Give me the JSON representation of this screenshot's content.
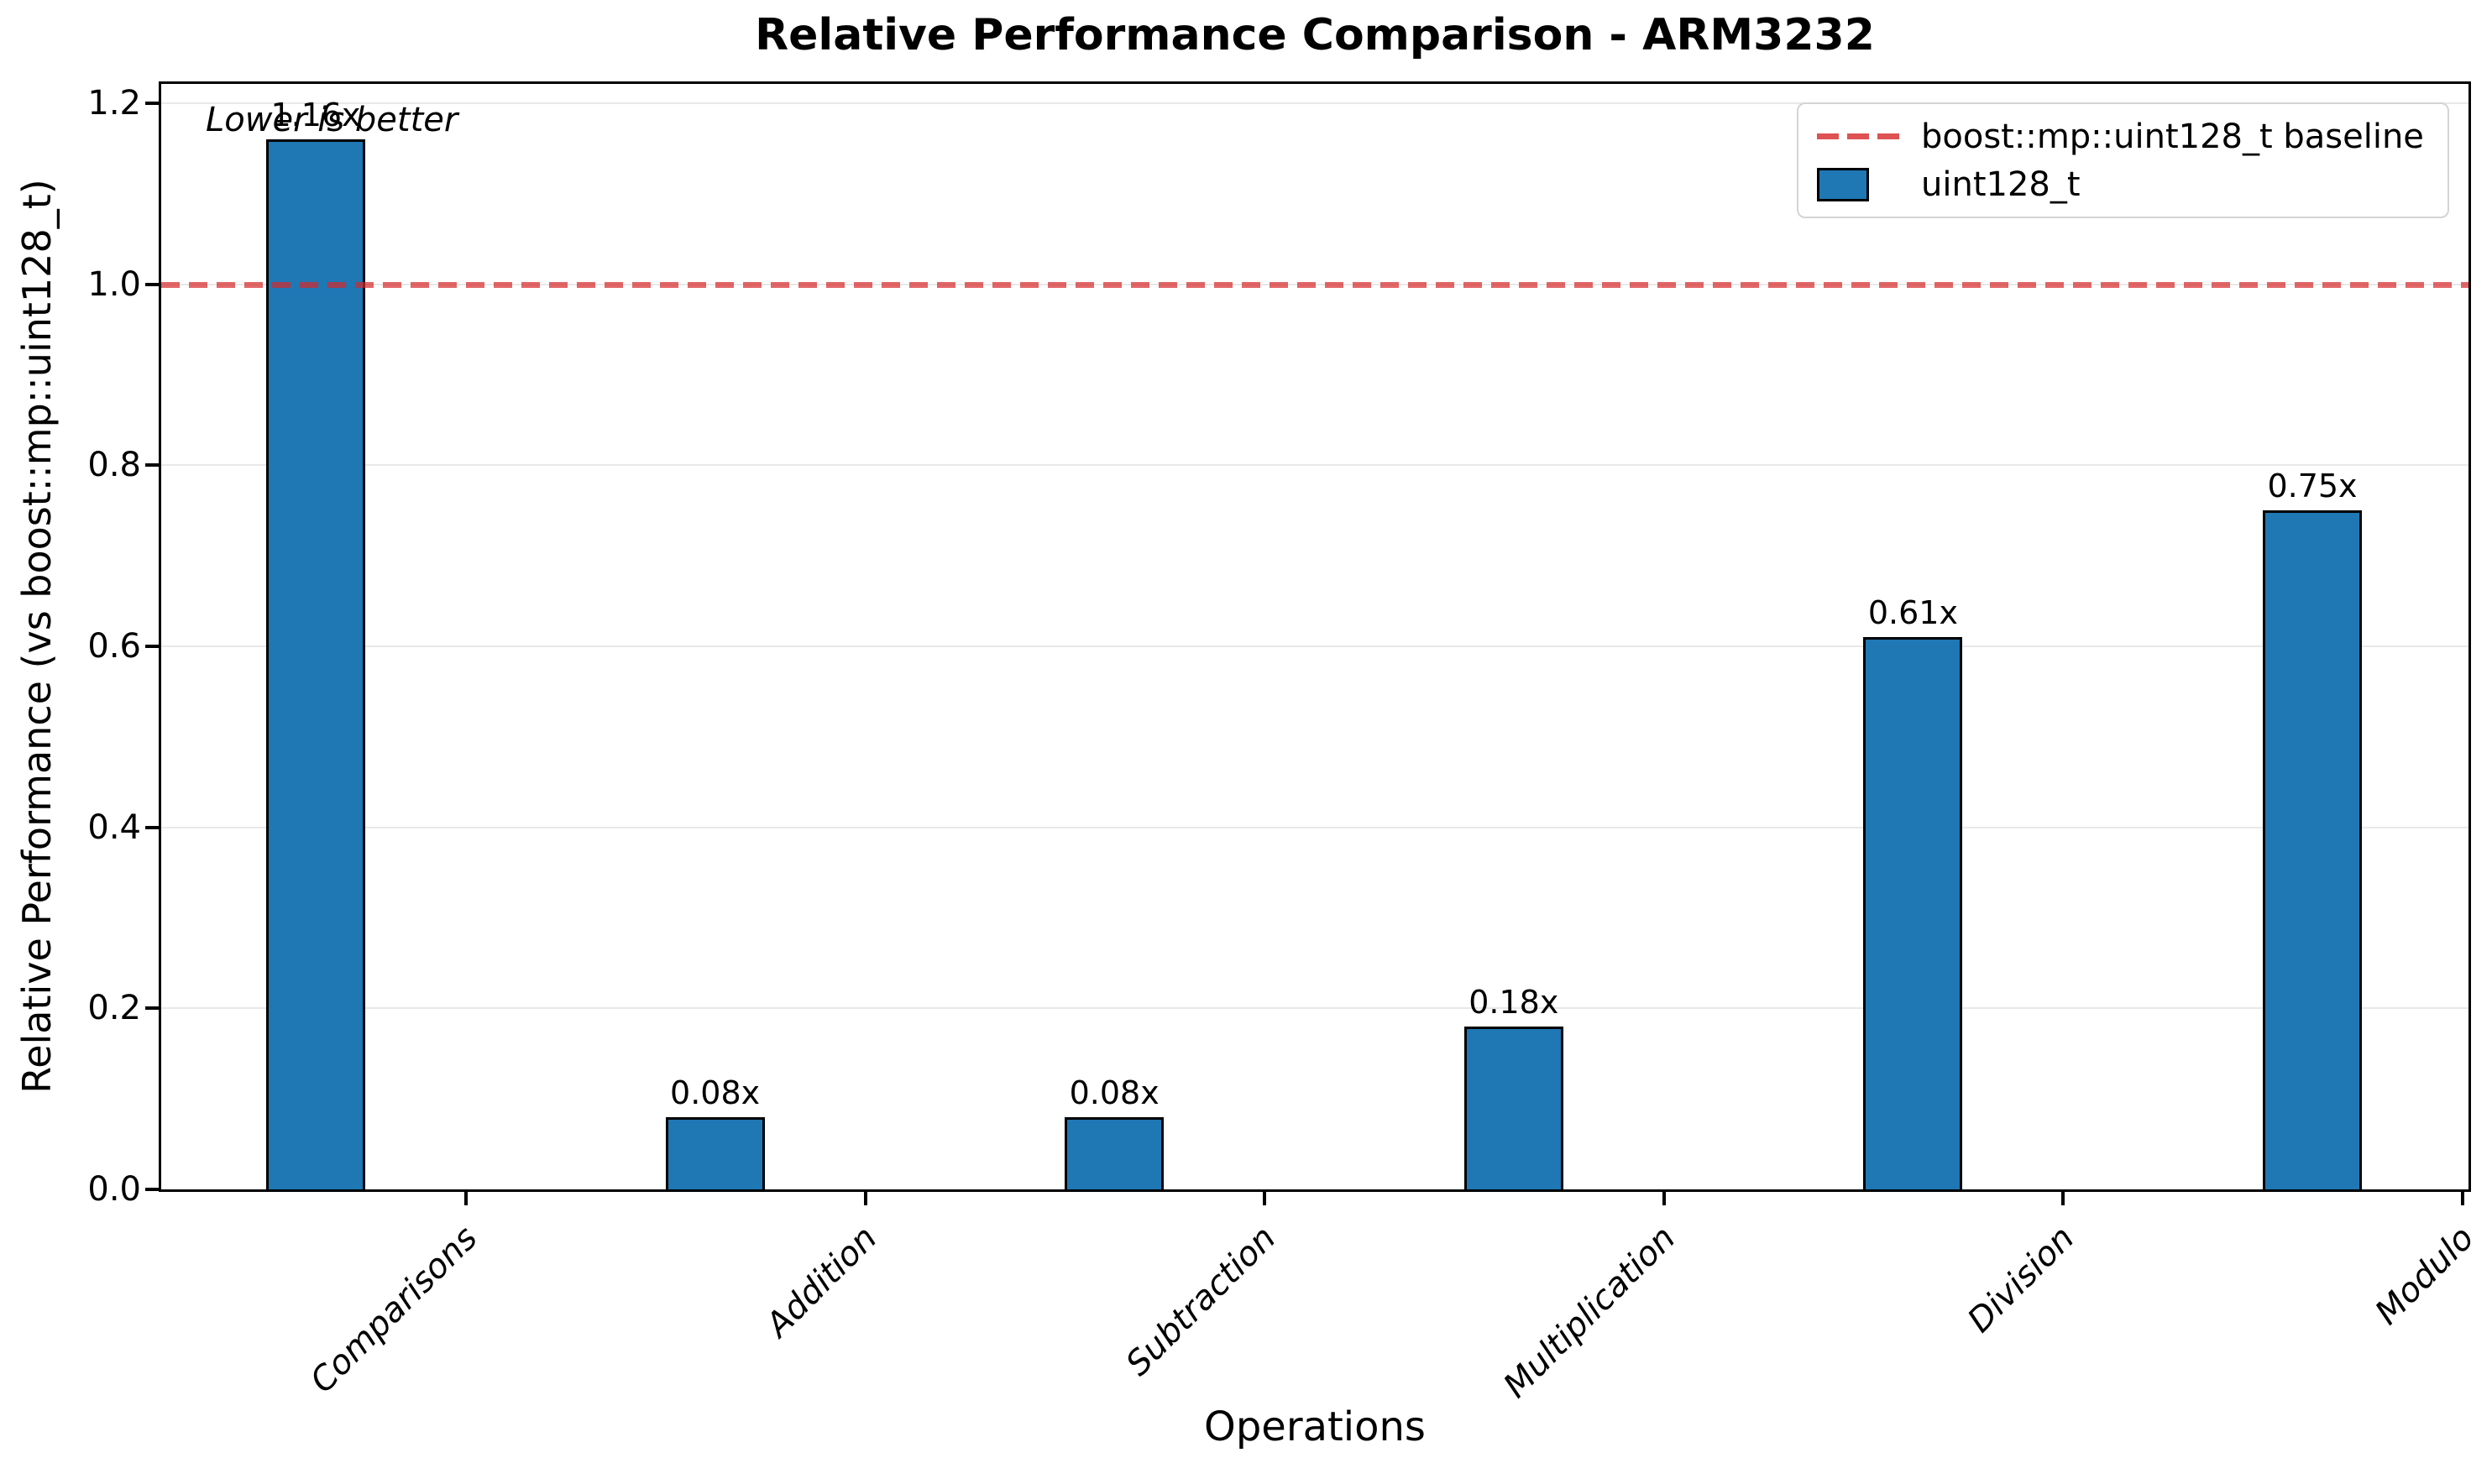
{
  "title": "Relative Performance Comparison - ARM3232",
  "annotation": "Lower is better",
  "legend": {
    "position": "upper right",
    "items": [
      {
        "label": "boost::mp::uint128_t baseline",
        "marker": "dashed-line-icon",
        "color": "#d62728"
      },
      {
        "label": "uint128_t",
        "marker": "filled-rect-icon",
        "color": "#1f77b4"
      }
    ]
  },
  "chart_data": {
    "type": "bar",
    "title": "Relative Performance Comparison - ARM3232",
    "xlabel": "Operations",
    "ylabel": "Relative Performance (vs boost::mp::uint128_t)",
    "categories": [
      "Comparisons",
      "Addition",
      "Subtraction",
      "Multiplication",
      "Division",
      "Modulo"
    ],
    "series": [
      {
        "name": "uint128_t",
        "values": [
          1.16,
          0.08,
          0.08,
          0.18,
          0.61,
          0.75
        ]
      }
    ],
    "bar_labels": [
      "1.16x",
      "0.08x",
      "0.08x",
      "0.18x",
      "0.61x",
      "0.75x"
    ],
    "baseline": {
      "value": 1.0,
      "label": "boost::mp::uint128_t baseline"
    },
    "ylim": [
      0.0,
      1.22
    ],
    "yticks": [
      0.0,
      0.2,
      0.4,
      0.6,
      0.8,
      1.0,
      1.2
    ],
    "ytick_labels": [
      "0.0",
      "0.2",
      "0.4",
      "0.6",
      "0.8",
      "1.0",
      "1.2"
    ],
    "xtick_rotation_deg": 45,
    "grid": true,
    "legend_position": "upper right",
    "colors": {
      "bar_fill": "#1f77b4",
      "bar_edge": "#000000",
      "baseline_line": "#d62728",
      "baseline_alpha": 0.7,
      "gridline": "#e8e8e8",
      "text": "#000000"
    }
  }
}
